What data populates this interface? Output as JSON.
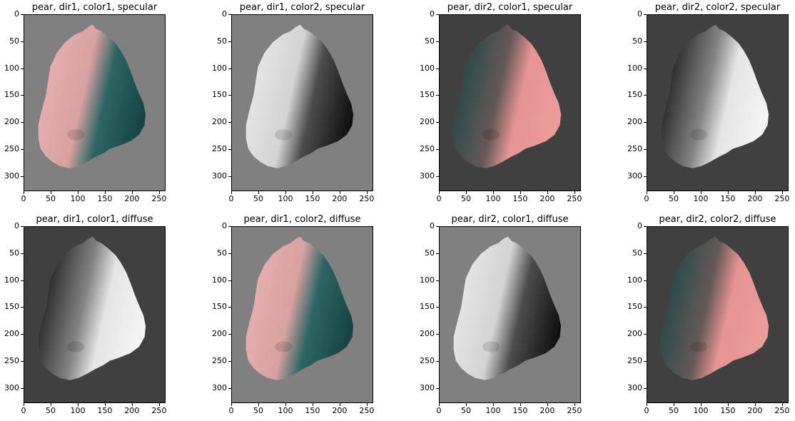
{
  "figure": {
    "panels": [
      {
        "title": "pear, dir1, color1, specular",
        "background": "#808080",
        "shading": "pink-teal",
        "light_from": "left"
      },
      {
        "title": "pear, dir1, color2, specular",
        "background": "#808080",
        "shading": "white-black",
        "light_from": "left"
      },
      {
        "title": "pear, dir2, color1, specular",
        "background": "#404040",
        "shading": "teal-pink",
        "light_from": "right"
      },
      {
        "title": "pear, dir2, color2, specular",
        "background": "#404040",
        "shading": "black-white",
        "light_from": "right"
      },
      {
        "title": "pear, dir1, color1, diffuse",
        "background": "#404040",
        "shading": "black-white",
        "light_from": "right"
      },
      {
        "title": "pear, dir1, color2, diffuse",
        "background": "#808080",
        "shading": "pink-teal",
        "light_from": "left"
      },
      {
        "title": "pear, dir2, color1, diffuse",
        "background": "#808080",
        "shading": "white-black",
        "light_from": "left"
      },
      {
        "title": "pear, dir2, color2, diffuse",
        "background": "#404040",
        "shading": "teal-pink",
        "light_from": "right"
      }
    ],
    "yticks": [
      "0",
      "50",
      "100",
      "150",
      "200",
      "250",
      "300"
    ],
    "xticks": [
      "0",
      "50",
      "100",
      "150",
      "200",
      "250"
    ],
    "image_height": 328,
    "image_width": 262
  }
}
